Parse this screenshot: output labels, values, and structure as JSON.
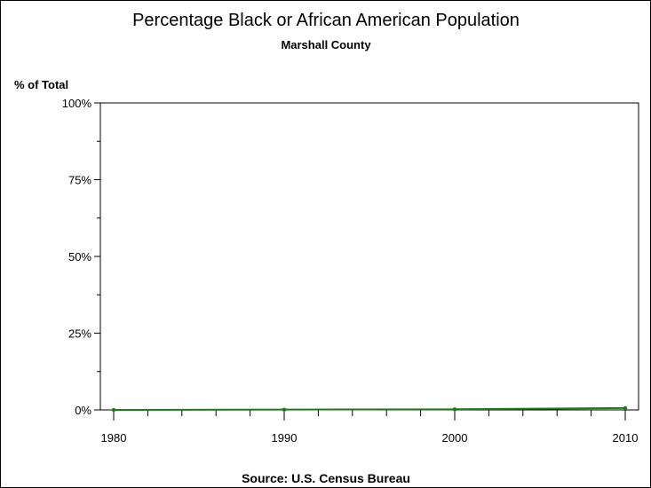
{
  "chart_data": {
    "type": "line",
    "title": "Percentage Black or African American Population",
    "subtitle": "Marshall County",
    "ylabel": "% of Total",
    "xlabel": "",
    "footnote": "Source: U.S. Census Bureau",
    "x": [
      1980,
      1990,
      2000,
      2010
    ],
    "series": [
      {
        "values": [
          0.0,
          0.1,
          0.2,
          0.6
        ],
        "color": "#1a7a1a"
      }
    ],
    "xlim": [
      1979.2,
      2010.8
    ],
    "ylim": [
      0,
      100
    ],
    "xticks": [
      "1980",
      "1990",
      "2000",
      "2010"
    ],
    "yticks": [
      "0%",
      "25%",
      "50%",
      "75%",
      "100%"
    ],
    "grid": false
  }
}
